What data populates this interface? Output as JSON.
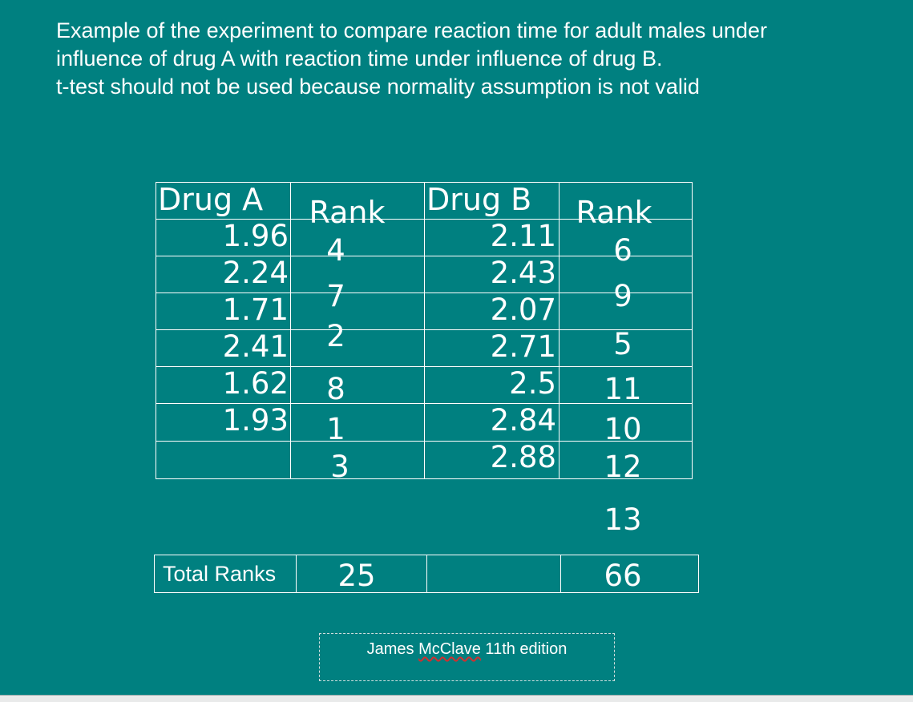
{
  "slide": {
    "title_lines": [
      "Example of the experiment to compare reaction time for adult males under",
      "influence of drug A with reaction time under influence of drug B.",
      "t-test should not be used  because  normality assumption is not valid"
    ]
  },
  "table": {
    "headers": [
      "Drug A",
      "Rank",
      "Drug B",
      "Rank"
    ],
    "drug_a": [
      "1.96",
      "2.24",
      "1.71",
      "2.41",
      "1.62",
      "1.93"
    ],
    "rank_a": [
      "4",
      "7",
      "2",
      "8",
      "1",
      "3"
    ],
    "drug_b": [
      "2.11",
      "2.43",
      "2.07",
      "2.71",
      "2.5",
      "2.84",
      "2.88"
    ],
    "rank_b": [
      "6",
      "9",
      "5",
      "11",
      "10",
      "12",
      "13"
    ]
  },
  "totals": {
    "label": "Total Ranks",
    "rank_a_total": "25",
    "rank_b_total": "66"
  },
  "caption": {
    "before": "James ",
    "misspelled": "McClave",
    "after": " 11th edition"
  }
}
